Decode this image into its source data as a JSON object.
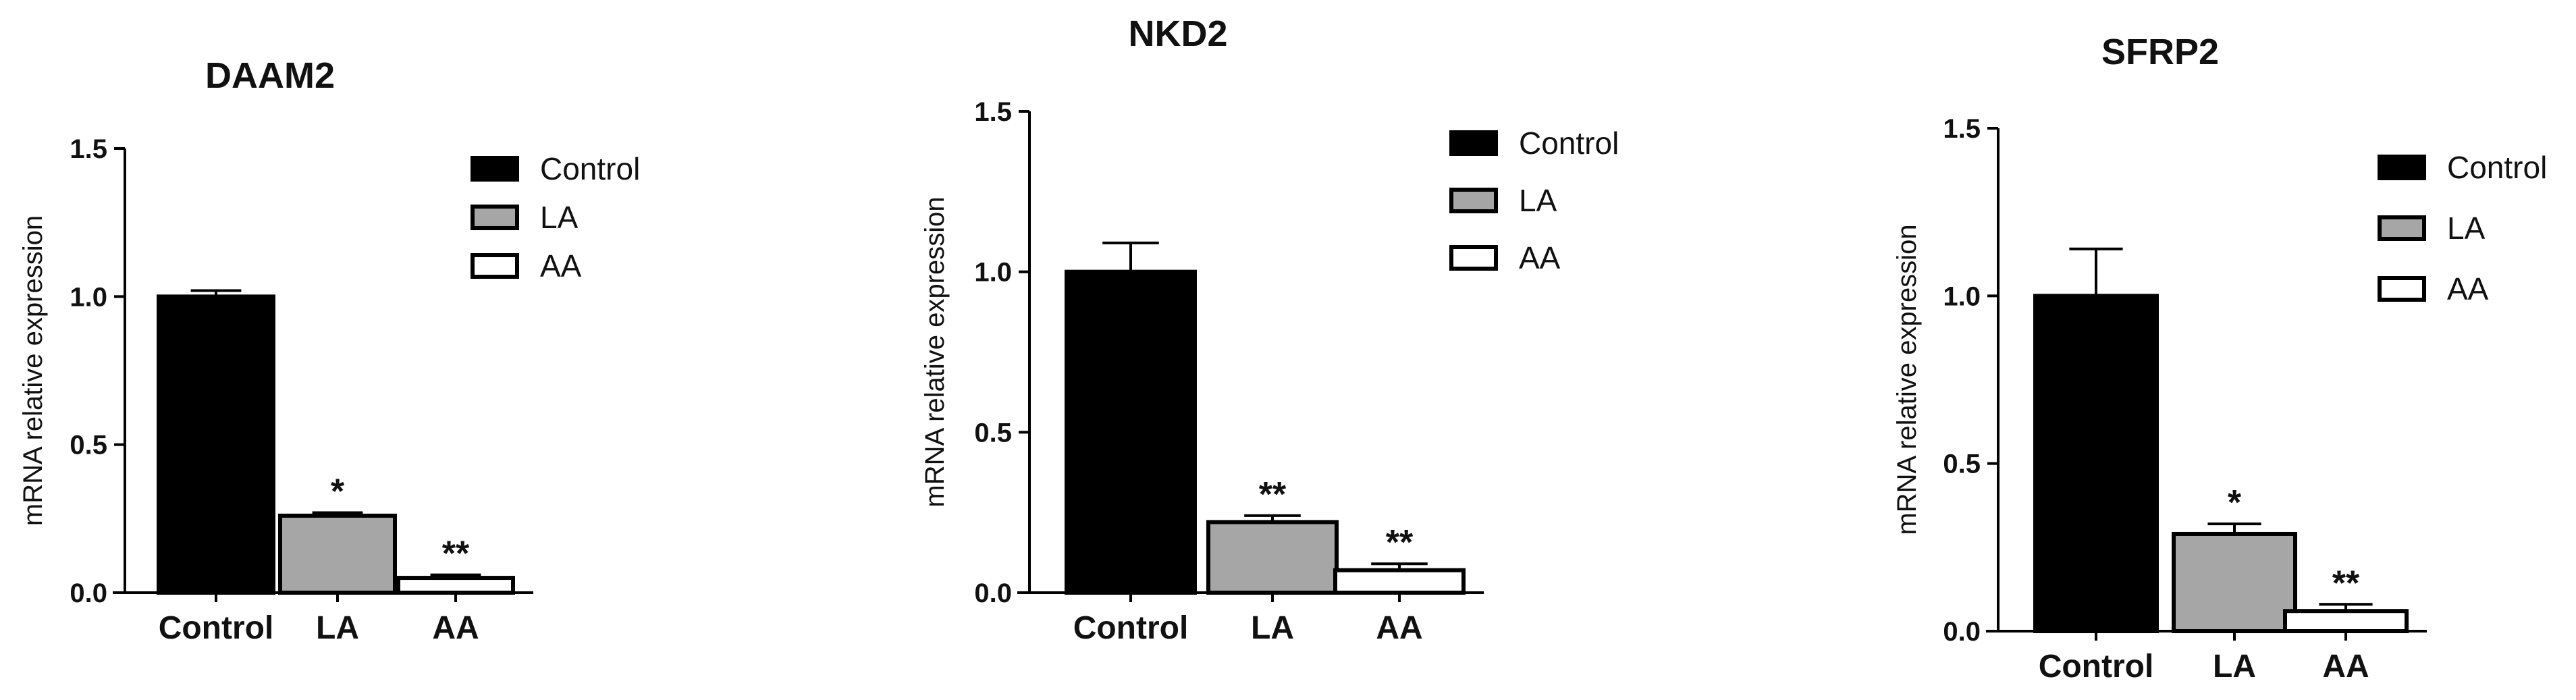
{
  "chart_data": [
    {
      "type": "bar",
      "title": "DAAM2",
      "ylabel": "mRNA relative expression",
      "categories": [
        "Control",
        "LA",
        "AA"
      ],
      "values": [
        1.0,
        0.26,
        0.05
      ],
      "errors": [
        0.02,
        0.01,
        0.01
      ],
      "significance": [
        "",
        "*",
        "**"
      ],
      "ylim": [
        0,
        1.5
      ],
      "yticks": [
        "0.0",
        "0.5",
        "1.0",
        "1.5"
      ],
      "legend": [
        "Control",
        "LA",
        "AA"
      ],
      "legend_position": "top-right",
      "grid": false
    },
    {
      "type": "bar",
      "title": "NKD2",
      "ylabel": "mRNA relative expression",
      "categories": [
        "Control",
        "LA",
        "AA"
      ],
      "values": [
        1.0,
        0.22,
        0.07
      ],
      "errors": [
        0.09,
        0.02,
        0.02
      ],
      "significance": [
        "",
        "**",
        "**"
      ],
      "ylim": [
        0,
        1.5
      ],
      "yticks": [
        "0.0",
        "0.5",
        "1.0",
        "1.5"
      ],
      "legend": [
        "Control",
        "LA",
        "AA"
      ],
      "legend_position": "top-right",
      "grid": false
    },
    {
      "type": "bar",
      "title": "SFRP2",
      "ylabel": "mRNA relative expression",
      "categories": [
        "Control",
        "LA",
        "AA"
      ],
      "values": [
        1.0,
        0.29,
        0.06
      ],
      "errors": [
        0.14,
        0.03,
        0.02
      ],
      "significance": [
        "",
        "*",
        "**"
      ],
      "ylim": [
        0,
        1.5
      ],
      "yticks": [
        "0.0",
        "0.5",
        "1.0",
        "1.5"
      ],
      "legend": [
        "Control",
        "LA",
        "AA"
      ],
      "legend_position": "top-right",
      "grid": false
    }
  ],
  "colors": {
    "control": "#000000",
    "la": "#a6a6a6",
    "aa": "#ffffff",
    "axis": "#000000"
  }
}
